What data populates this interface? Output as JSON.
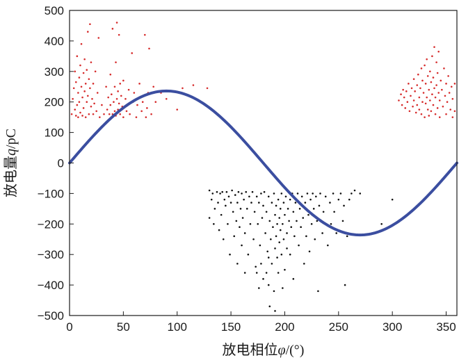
{
  "chart_data": {
    "type": "scatter",
    "title": "",
    "xlabel": {
      "prefix": "放电相位",
      "symbol": "φ",
      "unit": "/(°)"
    },
    "ylabel": {
      "prefix": "放电量",
      "symbol": "q",
      "unit": "/pC"
    },
    "xlim": [
      0,
      360
    ],
    "ylim": [
      -500,
      500
    ],
    "xticks": [
      0,
      50,
      100,
      150,
      200,
      250,
      300,
      350
    ],
    "yticks": [
      500,
      400,
      300,
      200,
      100,
      0,
      -100,
      -200,
      -300,
      -400,
      -500
    ],
    "grid": false,
    "legend": "none",
    "series": [
      {
        "kind": "scatter",
        "color": "#d62b2b",
        "points": [
          [
            2,
            160
          ],
          [
            3,
            210
          ],
          [
            4,
            245
          ],
          [
            5,
            175
          ],
          [
            5,
            300
          ],
          [
            6,
            155
          ],
          [
            6,
            265
          ],
          [
            7,
            190
          ],
          [
            7,
            350
          ],
          [
            8,
            230
          ],
          [
            8,
            150
          ],
          [
            9,
            280
          ],
          [
            9,
            200
          ],
          [
            10,
            320
          ],
          [
            10,
            165
          ],
          [
            11,
            250
          ],
          [
            11,
            390
          ],
          [
            12,
            215
          ],
          [
            12,
            155
          ],
          [
            13,
            295
          ],
          [
            13,
            180
          ],
          [
            14,
            340
          ],
          [
            14,
            235
          ],
          [
            15,
            260
          ],
          [
            15,
            150
          ],
          [
            16,
            305
          ],
          [
            16,
            200
          ],
          [
            17,
            220
          ],
          [
            17,
            430
          ],
          [
            18,
            275
          ],
          [
            18,
            160
          ],
          [
            19,
            245
          ],
          [
            19,
            455
          ],
          [
            20,
            185
          ],
          [
            20,
            330
          ],
          [
            21,
            210
          ],
          [
            22,
            260
          ],
          [
            22,
            160
          ],
          [
            23,
            195
          ],
          [
            24,
            300
          ],
          [
            25,
            170
          ],
          [
            26,
            230
          ],
          [
            27,
            410
          ],
          [
            28,
            150
          ],
          [
            30,
            190
          ],
          [
            32,
            160
          ],
          [
            34,
            250
          ],
          [
            35,
            175
          ],
          [
            36,
            215
          ],
          [
            37,
            160
          ],
          [
            38,
            290
          ],
          [
            38,
            190
          ],
          [
            39,
            225
          ],
          [
            40,
            160
          ],
          [
            40,
            440
          ],
          [
            41,
            200
          ],
          [
            42,
            250
          ],
          [
            42,
            170
          ],
          [
            43,
            330
          ],
          [
            43,
            155
          ],
          [
            44,
            210
          ],
          [
            44,
            460
          ],
          [
            45,
            235
          ],
          [
            45,
            175
          ],
          [
            46,
            195
          ],
          [
            46,
            420
          ],
          [
            47,
            260
          ],
          [
            47,
            160
          ],
          [
            48,
            220
          ],
          [
            49,
            185
          ],
          [
            50,
            270
          ],
          [
            50,
            150
          ],
          [
            52,
            210
          ],
          [
            53,
            170
          ],
          [
            55,
            240
          ],
          [
            56,
            160
          ],
          [
            58,
            360
          ],
          [
            59,
            200
          ],
          [
            60,
            230
          ],
          [
            62,
            150
          ],
          [
            63,
            190
          ],
          [
            65,
            260
          ],
          [
            67,
            170
          ],
          [
            68,
            200
          ],
          [
            70,
            420
          ],
          [
            71,
            150
          ],
          [
            72,
            180
          ],
          [
            73,
            230
          ],
          [
            74,
            375
          ],
          [
            76,
            160
          ],
          [
            78,
            250
          ],
          [
            80,
            200
          ],
          [
            85,
            230
          ],
          [
            90,
            210
          ],
          [
            100,
            175
          ],
          [
            105,
            245
          ],
          [
            112,
            220
          ],
          [
            115,
            255
          ],
          [
            128,
            245
          ],
          [
            306,
            205
          ],
          [
            308,
            225
          ],
          [
            309,
            190
          ],
          [
            310,
            240
          ],
          [
            311,
            215
          ],
          [
            312,
            180
          ],
          [
            313,
            235
          ],
          [
            314,
            200
          ],
          [
            315,
            260
          ],
          [
            316,
            170
          ],
          [
            317,
            220
          ],
          [
            318,
            245
          ],
          [
            319,
            185
          ],
          [
            320,
            275
          ],
          [
            320,
            205
          ],
          [
            321,
            235
          ],
          [
            322,
            165
          ],
          [
            323,
            255
          ],
          [
            323,
            190
          ],
          [
            324,
            290
          ],
          [
            325,
            215
          ],
          [
            325,
            175
          ],
          [
            326,
            245
          ],
          [
            327,
            310
          ],
          [
            327,
            160
          ],
          [
            328,
            200
          ],
          [
            328,
            270
          ],
          [
            329,
            230
          ],
          [
            330,
            150
          ],
          [
            330,
            320
          ],
          [
            331,
            195
          ],
          [
            331,
            260
          ],
          [
            332,
            215
          ],
          [
            332,
            340
          ],
          [
            333,
            175
          ],
          [
            333,
            285
          ],
          [
            334,
            240
          ],
          [
            334,
            155
          ],
          [
            335,
            205
          ],
          [
            335,
            300
          ],
          [
            336,
            265
          ],
          [
            336,
            170
          ],
          [
            337,
            350
          ],
          [
            337,
            225
          ],
          [
            338,
            190
          ],
          [
            338,
            280
          ],
          [
            339,
            245
          ],
          [
            339,
            380
          ],
          [
            340,
            160
          ],
          [
            340,
            215
          ],
          [
            341,
            330
          ],
          [
            341,
            255
          ],
          [
            342,
            180
          ],
          [
            342,
            295
          ],
          [
            343,
            230
          ],
          [
            343,
            365
          ],
          [
            344,
            150
          ],
          [
            344,
            205
          ],
          [
            345,
            270
          ],
          [
            346,
            240
          ],
          [
            347,
            185
          ],
          [
            348,
            310
          ],
          [
            349,
            220
          ],
          [
            350,
            160
          ],
          [
            350,
            260
          ],
          [
            351,
            200
          ],
          [
            352,
            285
          ],
          [
            353,
            230
          ],
          [
            354,
            175
          ],
          [
            355,
            250
          ],
          [
            356,
            150
          ],
          [
            356,
            210
          ],
          [
            358,
            260
          ],
          [
            358,
            170
          ]
        ]
      },
      {
        "kind": "scatter",
        "color": "#111111",
        "points": [
          [
            130,
            -90
          ],
          [
            130,
            -180
          ],
          [
            132,
            -120
          ],
          [
            133,
            -100
          ],
          [
            134,
            -200
          ],
          [
            135,
            -150
          ],
          [
            137,
            -95
          ],
          [
            138,
            -130
          ],
          [
            139,
            -220
          ],
          [
            140,
            -100
          ],
          [
            141,
            -170
          ],
          [
            142,
            -95
          ],
          [
            143,
            -250
          ],
          [
            144,
            -120
          ],
          [
            145,
            -140
          ],
          [
            146,
            -95
          ],
          [
            147,
            -200
          ],
          [
            148,
            -110
          ],
          [
            149,
            -300
          ],
          [
            150,
            -130
          ],
          [
            151,
            -90
          ],
          [
            152,
            -160
          ],
          [
            153,
            -240
          ],
          [
            154,
            -105
          ],
          [
            155,
            -190
          ],
          [
            156,
            -130
          ],
          [
            156,
            -330
          ],
          [
            157,
            -95
          ],
          [
            158,
            -210
          ],
          [
            159,
            -150
          ],
          [
            160,
            -100
          ],
          [
            160,
            -270
          ],
          [
            161,
            -180
          ],
          [
            162,
            -120
          ],
          [
            163,
            -230
          ],
          [
            163,
            -360
          ],
          [
            164,
            -95
          ],
          [
            165,
            -150
          ],
          [
            166,
            -300
          ],
          [
            167,
            -110
          ],
          [
            168,
            -200
          ],
          [
            169,
            -130
          ],
          [
            170,
            -95
          ],
          [
            171,
            -250
          ],
          [
            172,
            -160
          ],
          [
            173,
            -340
          ],
          [
            174,
            -110
          ],
          [
            175,
            -200
          ],
          [
            176,
            -130
          ],
          [
            177,
            -270
          ],
          [
            178,
            -100
          ],
          [
            179,
            -180
          ],
          [
            180,
            -380
          ],
          [
            180,
            -140
          ],
          [
            181,
            -95
          ],
          [
            182,
            -230
          ],
          [
            183,
            -160
          ],
          [
            184,
            -290
          ],
          [
            185,
            -110
          ],
          [
            185,
            -400
          ],
          [
            186,
            -190
          ],
          [
            187,
            -250
          ],
          [
            188,
            -130
          ],
          [
            188,
            -330
          ],
          [
            189,
            -210
          ],
          [
            190,
            -100
          ],
          [
            190,
            -420
          ],
          [
            191,
            -170
          ],
          [
            191,
            -280
          ],
          [
            192,
            -240
          ],
          [
            192,
            -140
          ],
          [
            193,
            -310
          ],
          [
            193,
            -200
          ],
          [
            194,
            -120
          ],
          [
            194,
            -360
          ],
          [
            195,
            -180
          ],
          [
            195,
            -260
          ],
          [
            196,
            -220
          ],
          [
            196,
            -150
          ],
          [
            197,
            -300
          ],
          [
            197,
            -100
          ],
          [
            198,
            -200
          ],
          [
            198,
            -410
          ],
          [
            199,
            -130
          ],
          [
            199,
            -250
          ],
          [
            200,
            -170
          ],
          [
            200,
            -350
          ],
          [
            201,
            -110
          ],
          [
            202,
            -230
          ],
          [
            202,
            -280
          ],
          [
            203,
            -150
          ],
          [
            204,
            -190
          ],
          [
            205,
            -120
          ],
          [
            205,
            -300
          ],
          [
            206,
            -210
          ],
          [
            207,
            -100
          ],
          [
            208,
            -160
          ],
          [
            208,
            -380
          ],
          [
            209,
            -240
          ],
          [
            210,
            -130
          ],
          [
            211,
            -190
          ],
          [
            212,
            -100
          ],
          [
            213,
            -270
          ],
          [
            214,
            -150
          ],
          [
            215,
            -210
          ],
          [
            216,
            -110
          ],
          [
            217,
            -180
          ],
          [
            218,
            -330
          ],
          [
            219,
            -130
          ],
          [
            220,
            -240
          ],
          [
            221,
            -100
          ],
          [
            222,
            -170
          ],
          [
            223,
            -290
          ],
          [
            224,
            -120
          ],
          [
            225,
            -200
          ],
          [
            226,
            -100
          ],
          [
            227,
            -150
          ],
          [
            228,
            -250
          ],
          [
            229,
            -110
          ],
          [
            230,
            -190
          ],
          [
            231,
            -420
          ],
          [
            232,
            -140
          ],
          [
            233,
            -100
          ],
          [
            235,
            -230
          ],
          [
            236,
            -160
          ],
          [
            238,
            -110
          ],
          [
            240,
            -270
          ],
          [
            242,
            -130
          ],
          [
            243,
            -200
          ],
          [
            245,
            -100
          ],
          [
            246,
            -160
          ],
          [
            248,
            -230
          ],
          [
            250,
            -120
          ],
          [
            252,
            -100
          ],
          [
            254,
            -190
          ],
          [
            255,
            -140
          ],
          [
            256,
            -400
          ],
          [
            258,
            -240
          ],
          [
            260,
            -120
          ],
          [
            262,
            -100
          ],
          [
            265,
            -90
          ],
          [
            270,
            -100
          ],
          [
            290,
            -200
          ],
          [
            300,
            -120
          ],
          [
            186,
            -470
          ],
          [
            191,
            -485
          ],
          [
            185,
            -310
          ],
          [
            183,
            -360
          ],
          [
            178,
            -330
          ],
          [
            176,
            -410
          ],
          [
            174,
            -360
          ]
        ]
      },
      {
        "kind": "line",
        "name": "",
        "color": "#3b4ea0",
        "function": "q = 236 * sin(phi)",
        "amplitude": 236
      }
    ]
  }
}
